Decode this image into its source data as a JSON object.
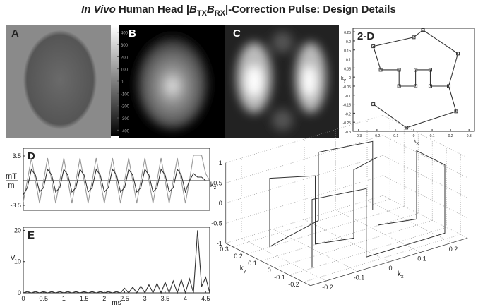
{
  "title_parts": [
    "In Vivo",
    " Human Head |",
    "B",
    "TX",
    "B",
    "RX",
    "|-Correction Pulse: Design Details"
  ],
  "images": [
    {
      "label": "A"
    },
    {
      "label": "B"
    },
    {
      "label": "C"
    }
  ],
  "colorbar": {
    "ylim": [
      -450,
      450
    ],
    "yticks": [
      400,
      300,
      200,
      100,
      0,
      -100,
      -200,
      -300,
      -400
    ]
  },
  "chart_data": [
    {
      "type": "line",
      "title": "2-D",
      "markers": true,
      "x": [
        -0.22,
        -0.04,
        0.23,
        0.19,
        0.09,
        0.09,
        0.01,
        0.01,
        -0.08,
        -0.08,
        -0.18,
        -0.22,
        0.0,
        0.05,
        0.24,
        0.19
      ],
      "series": [
        {
          "color": "#333",
          "values": [
            -0.15,
            -0.28,
            -0.19,
            -0.05,
            -0.05,
            0.04,
            0.04,
            -0.05,
            -0.05,
            0.04,
            0.04,
            0.17,
            0.22,
            0.26,
            0.13,
            -0.05
          ]
        }
      ],
      "xlim": [
        -0.33,
        0.33
      ],
      "ylim": [
        -0.3,
        0.27
      ],
      "xticks": [
        -0.3,
        -0.2,
        -0.1,
        0,
        0.1,
        0.2,
        0.3
      ],
      "yticks": [
        0.25,
        0.2,
        0.15,
        0.1,
        0.05,
        0,
        -0.05,
        -0.1,
        -0.15,
        -0.2,
        -0.25,
        -0.3
      ],
      "xlabel": [
        "k",
        "x"
      ],
      "ylabel": [
        "k",
        "y"
      ]
    },
    {
      "type": "line",
      "title": "D",
      "zero_line": true,
      "x": [
        0,
        0.1,
        0.2,
        0.3,
        0.4,
        0.5,
        0.6,
        0.7,
        0.8,
        0.9,
        1,
        1.1,
        1.2,
        1.3,
        1.4,
        1.5,
        1.6,
        1.7,
        1.8,
        1.9,
        2,
        2.1,
        2.2,
        2.3,
        2.4,
        2.5,
        2.6,
        2.7,
        2.8,
        2.9,
        3,
        3.1,
        3.2,
        3.3,
        3.4,
        3.5,
        3.6,
        3.7,
        3.8,
        3.9,
        4,
        4.1,
        4.2,
        4.3,
        4.4,
        4.5,
        4.6
      ],
      "series": [
        {
          "color": "#999",
          "values": [
            -3,
            0,
            3.2,
            0,
            -3.2,
            0,
            3.2,
            0,
            -3.2,
            0,
            3.2,
            0,
            -3.2,
            0,
            3.2,
            0,
            -3.2,
            0,
            3.2,
            0,
            -3.2,
            0,
            3.2,
            0,
            -3.2,
            0,
            3.2,
            0,
            -3.2,
            0,
            3.2,
            0,
            -3.2,
            0,
            3.2,
            0,
            -3.2,
            0,
            3.2,
            0,
            -3.2,
            0,
            3.6,
            3.6,
            3.6,
            1,
            0
          ]
        },
        {
          "color": "#333",
          "values": [
            -2,
            -1,
            1.6,
            0.8,
            -1.6,
            -1,
            1.6,
            0.8,
            -1.6,
            -1,
            1.6,
            0.8,
            -1.6,
            -1,
            1.6,
            0.8,
            -1.6,
            -1,
            1.6,
            0.8,
            -1.6,
            -1,
            1.6,
            0.8,
            -1.6,
            -1,
            1.6,
            0.8,
            -1.6,
            -1,
            1.6,
            0.8,
            -1.6,
            -1,
            1.6,
            0.8,
            -1.6,
            -1,
            1.6,
            0.8,
            -1.6,
            0,
            1,
            0.5,
            0.5,
            0,
            0
          ]
        }
      ],
      "xlim": [
        0,
        4.6
      ],
      "ylim": [
        -4.2,
        4.6
      ],
      "yticks": [
        3.5,
        -3.5
      ],
      "ylabel": [
        "mT",
        "m"
      ]
    },
    {
      "type": "line",
      "title": "E",
      "x": [
        0,
        0.1,
        0.2,
        0.3,
        0.4,
        0.5,
        0.6,
        0.7,
        0.8,
        0.9,
        1,
        1.1,
        1.2,
        1.3,
        1.4,
        1.5,
        1.6,
        1.7,
        1.8,
        1.9,
        2,
        2.1,
        2.2,
        2.3,
        2.4,
        2.5,
        2.6,
        2.7,
        2.8,
        2.9,
        3,
        3.1,
        3.2,
        3.3,
        3.4,
        3.5,
        3.6,
        3.7,
        3.8,
        3.9,
        4,
        4.1,
        4.2,
        4.3,
        4.4,
        4.5,
        4.6
      ],
      "series": [
        {
          "color": "#333",
          "values": [
            0,
            0.4,
            0,
            0.4,
            0,
            0.4,
            0,
            0.4,
            0,
            0.4,
            0,
            0.4,
            0,
            0.4,
            0,
            0.4,
            0,
            0.4,
            0,
            0.4,
            0,
            0.4,
            0,
            0.4,
            0,
            1.5,
            0,
            1.8,
            0,
            2.2,
            0,
            2.6,
            0,
            3,
            0,
            3.4,
            0,
            3.8,
            0,
            4.2,
            0,
            4.5,
            0,
            20,
            2,
            5,
            0
          ]
        }
      ],
      "xlim": [
        0,
        4.6
      ],
      "ylim": [
        0,
        21
      ],
      "xticks": [
        0,
        0.5,
        1,
        1.5,
        2,
        2.5,
        3,
        3.5,
        4,
        4.5
      ],
      "yticks": [
        0,
        10,
        20
      ],
      "xlabel": "ms",
      "ylabel": "V"
    },
    {
      "type": "line3d",
      "x": [
        -0.2,
        -0.2,
        -0.05,
        -0.05,
        0.2,
        0.2,
        0.2,
        0.2,
        0.1,
        0.1,
        0,
        0,
        -0.1,
        -0.1,
        -0.2,
        -0.2,
        0,
        0,
        0.15,
        0.15
      ],
      "y": [
        -0.15,
        -0.15,
        -0.2,
        -0.2,
        -0.2,
        -0.2,
        0,
        0,
        0.05,
        0.05,
        0,
        0,
        0.05,
        0.05,
        0.15,
        0.15,
        0.25,
        0.25,
        0.2,
        0.2
      ],
      "z": [
        -0.85,
        0.85,
        0.85,
        -0.85,
        -0.85,
        0.85,
        0.85,
        -0.85,
        -0.85,
        0.85,
        0.85,
        -0.85,
        -0.85,
        0.85,
        0.85,
        -0.85,
        -0.85,
        0.85,
        0.85,
        -0.85
      ],
      "xlim": [
        -0.25,
        0.25
      ],
      "ylim": [
        -0.25,
        0.35
      ],
      "zlim": [
        -1,
        1
      ],
      "xticks": [
        -0.2,
        -0.1,
        0,
        0.1,
        0.2
      ],
      "yticks": [
        0.3,
        0.2,
        0.1,
        0,
        -0.1,
        -0.2
      ],
      "zticks": [
        1,
        0.5,
        0,
        -0.5,
        -1
      ],
      "xlabel": [
        "k",
        "x"
      ],
      "ylabel": [
        "k",
        "y"
      ],
      "zlabel": [
        "k",
        "z"
      ]
    }
  ]
}
